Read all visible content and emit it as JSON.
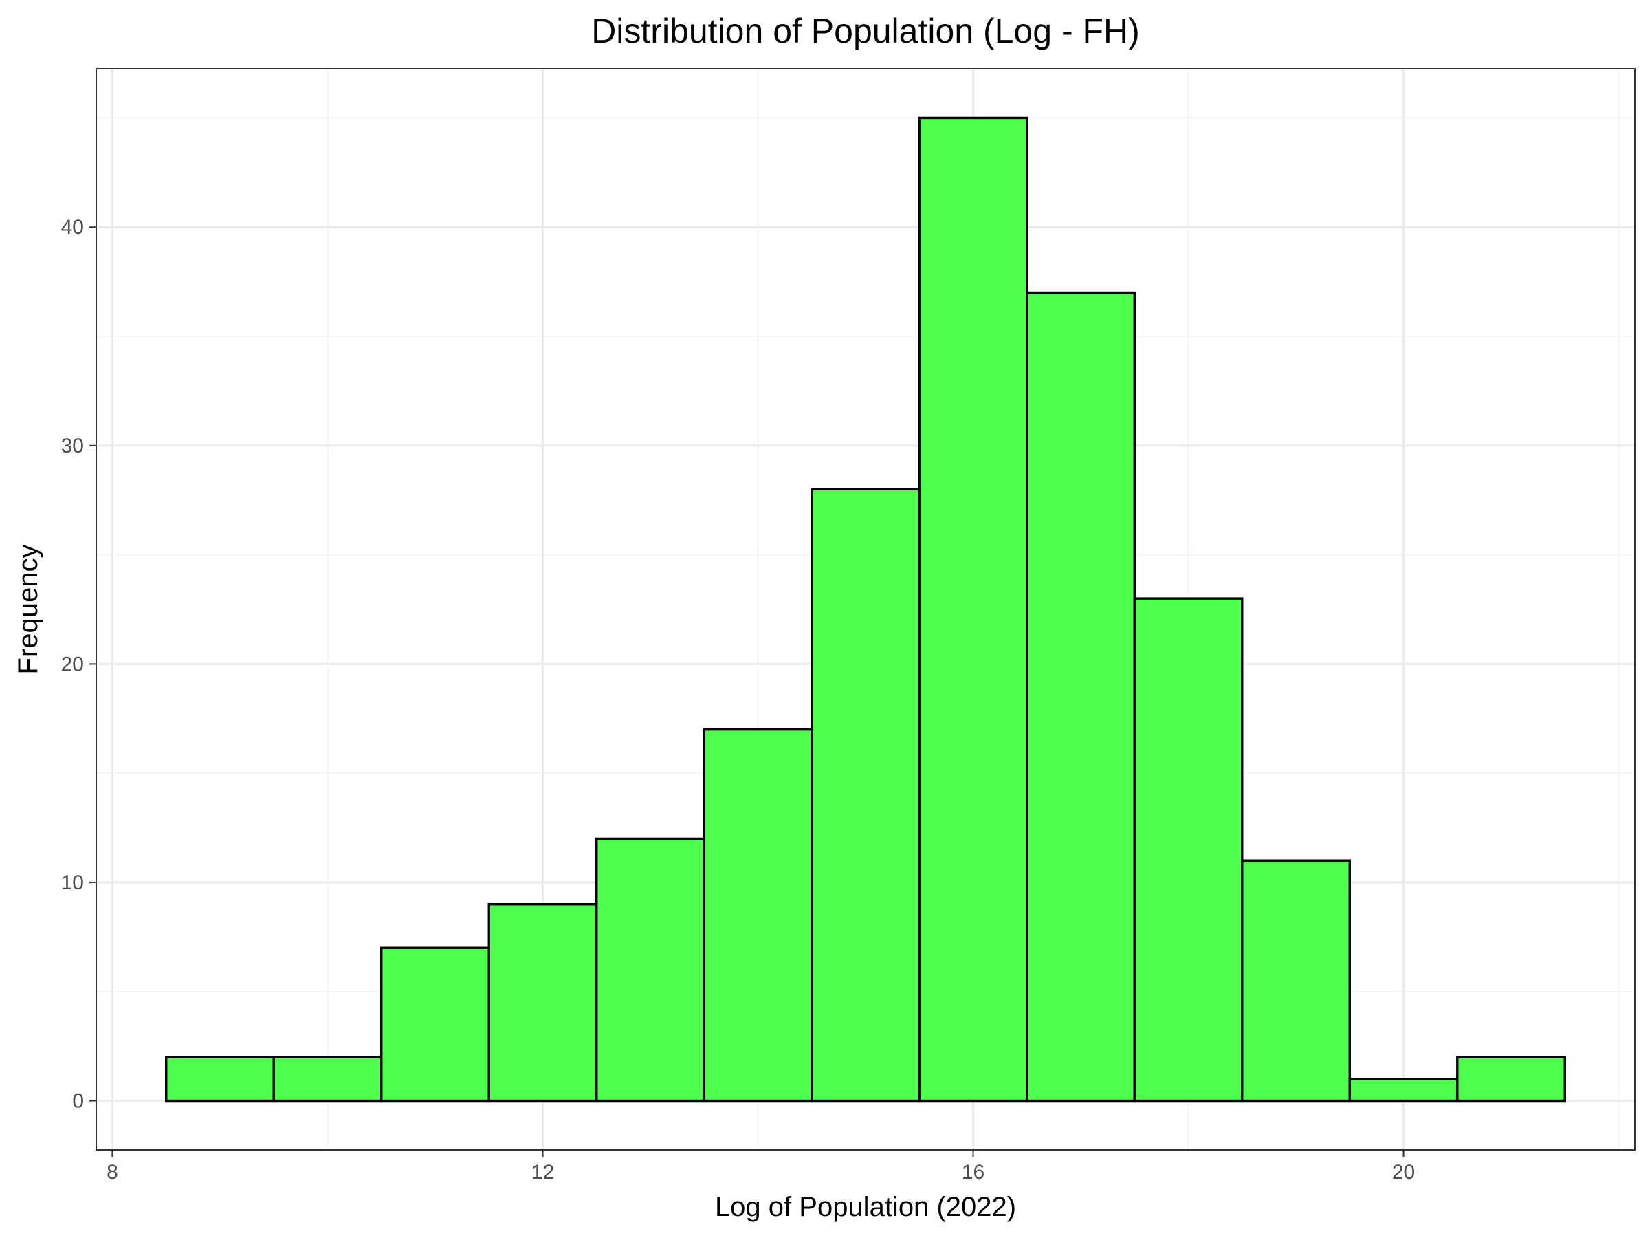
{
  "chart_data": {
    "type": "bar",
    "subtype": "histogram",
    "title": "Distribution of Population (Log - FH)",
    "xlabel": "Log of Population (2022)",
    "ylabel": "Frequency",
    "bin_width": 1,
    "bins": [
      {
        "start": 8.5,
        "end": 9.5,
        "count": 2
      },
      {
        "start": 9.5,
        "end": 10.5,
        "count": 2
      },
      {
        "start": 10.5,
        "end": 11.5,
        "count": 7
      },
      {
        "start": 11.5,
        "end": 12.5,
        "count": 9
      },
      {
        "start": 12.5,
        "end": 13.5,
        "count": 12
      },
      {
        "start": 13.5,
        "end": 14.5,
        "count": 17
      },
      {
        "start": 14.5,
        "end": 15.5,
        "count": 28
      },
      {
        "start": 15.5,
        "end": 16.5,
        "count": 45
      },
      {
        "start": 16.5,
        "end": 17.5,
        "count": 37
      },
      {
        "start": 17.5,
        "end": 18.5,
        "count": 23
      },
      {
        "start": 18.5,
        "end": 19.5,
        "count": 11
      },
      {
        "start": 19.5,
        "end": 20.5,
        "count": 1
      },
      {
        "start": 20.5,
        "end": 21.5,
        "count": 2
      }
    ],
    "xlim": [
      7.85,
      22.15
    ],
    "ylim": [
      -2.25,
      47.25
    ],
    "x_ticks": [
      8,
      12,
      16,
      20
    ],
    "x_tick_labels": [
      "8",
      "12",
      "16",
      "20"
    ],
    "y_ticks": [
      0,
      10,
      20,
      30,
      40
    ],
    "y_tick_labels": [
      "0",
      "10",
      "20",
      "30",
      "40"
    ],
    "x_minor_gridlines": [
      10,
      14,
      18,
      22
    ],
    "y_minor_gridlines": [
      5,
      15,
      25,
      35,
      45
    ],
    "grid": true,
    "legend": "none",
    "colors": {
      "bar_fill": "#4eff4e",
      "bar_outline": "#000000",
      "grid_major": "#ebebeb",
      "grid_minor": "#f4f4f4",
      "panel_border": "#333333",
      "tick_label": "#4d4d4d",
      "text": "#000000"
    }
  }
}
